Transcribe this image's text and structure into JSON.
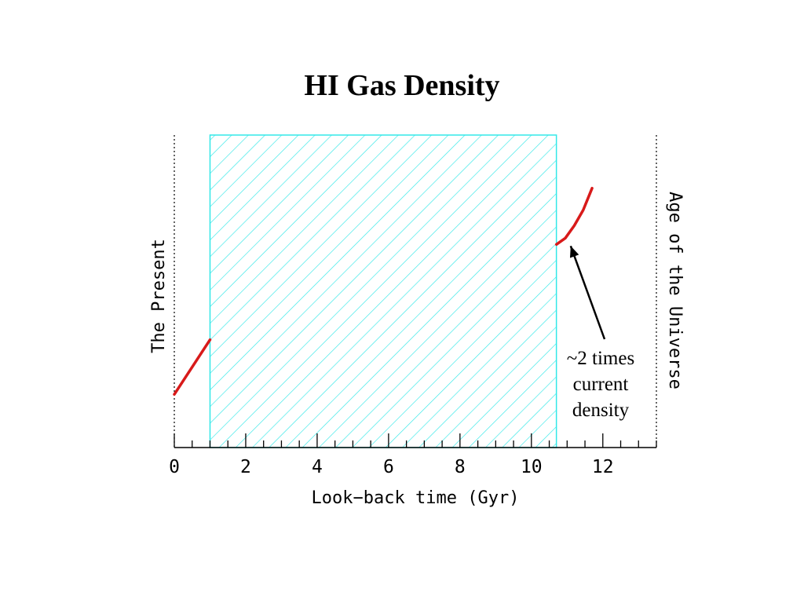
{
  "chart_data": {
    "type": "line",
    "title": "HI Gas Density",
    "xlabel": "Look−back time (Gyr)",
    "ylabel": "",
    "xlim": [
      0,
      13.5
    ],
    "ylim": [
      0,
      1
    ],
    "xticks": [
      0,
      2,
      4,
      6,
      8,
      10,
      12
    ],
    "xtick_labels": [
      "0",
      "2",
      "4",
      "6",
      "8",
      "10",
      "12"
    ],
    "minor_tick_step": 0.5,
    "grid": false,
    "series": [
      {
        "values": [
          [
            0,
            0.17
          ],
          [
            1,
            0.345
          ]
        ]
      },
      {
        "values": [
          [
            10.7,
            0.65
          ],
          [
            10.95,
            0.67
          ],
          [
            11.2,
            0.71
          ],
          [
            11.45,
            0.76
          ],
          [
            11.7,
            0.83
          ]
        ]
      }
    ],
    "shaded_region": {
      "x": [
        1,
        10.7
      ],
      "color": "#33e8e8",
      "pattern": "diagonal-hatch"
    },
    "reference_lines": [
      {
        "x": 0,
        "label": "The Present"
      },
      {
        "x": 13.5,
        "label": "Age of the Universe"
      }
    ],
    "annotation": {
      "lines": [
        "~2 times",
        "current",
        "density"
      ],
      "arrow_to": [
        11.1,
        0.645
      ]
    },
    "colors": {
      "curve": "#d81a1a",
      "hatch": "#33e8e8",
      "axis": "#000000"
    }
  }
}
